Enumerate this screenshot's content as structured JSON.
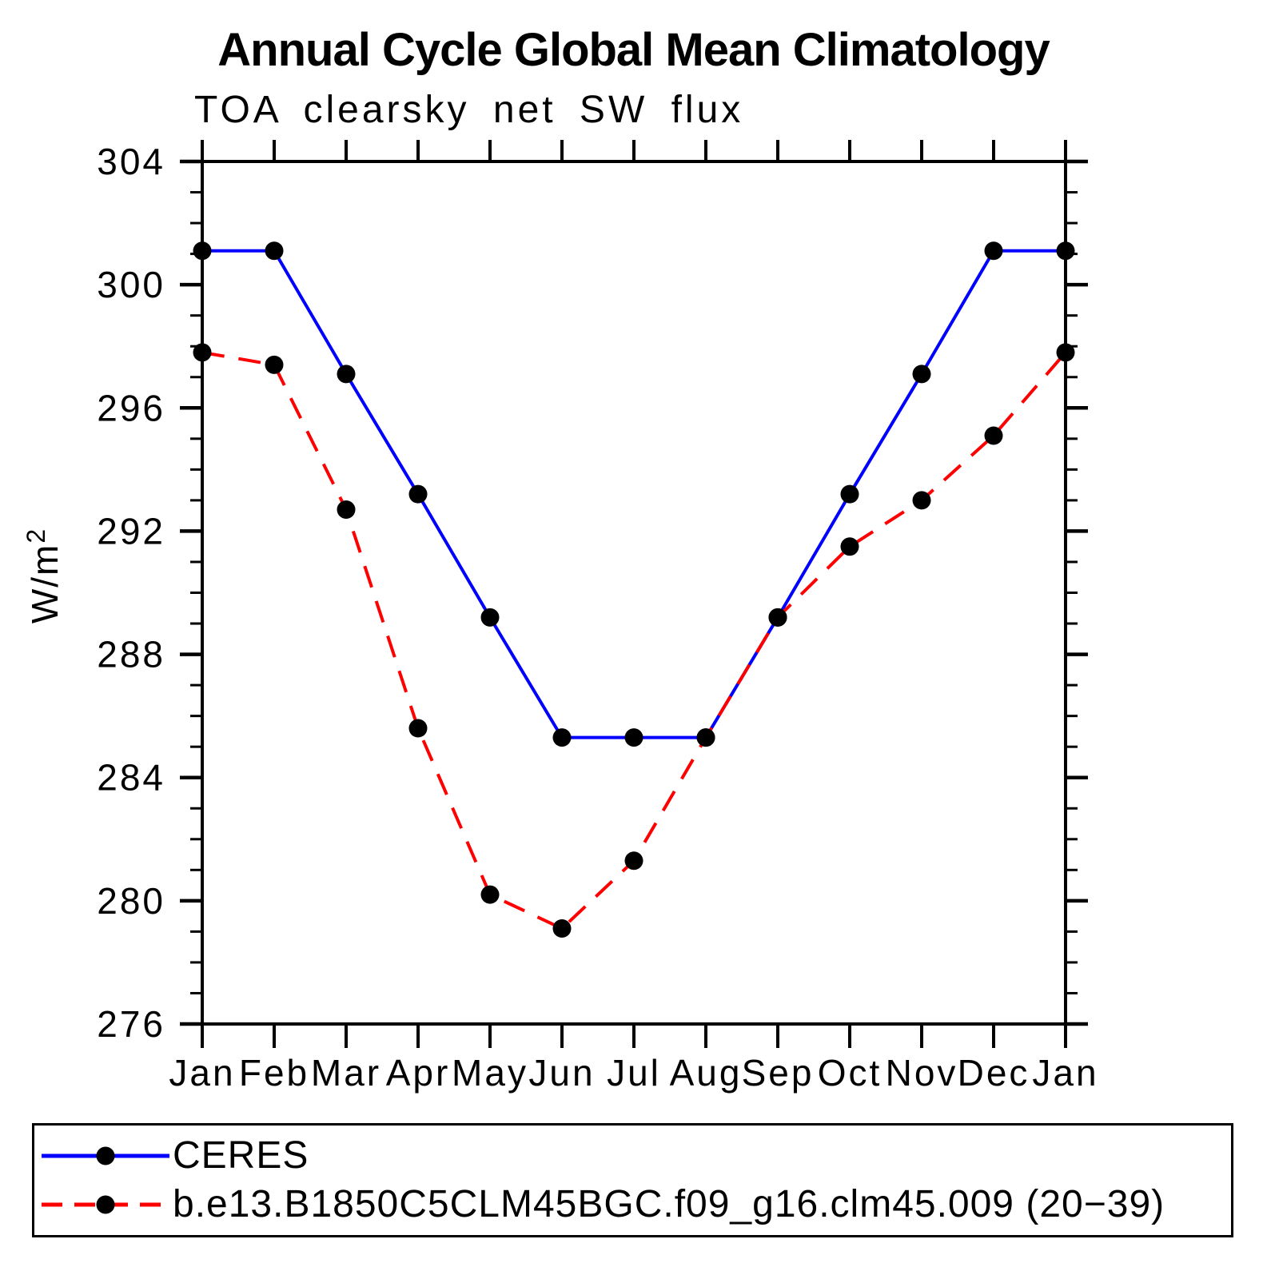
{
  "title": "Annual Cycle Global Mean Climatology",
  "subtitle": "TOA clearsky net SW flux",
  "axes": {
    "ylabel_base": "W/m",
    "ylabel_exp": "2"
  },
  "legend": {
    "entries": [
      {
        "label": "CERES",
        "color": "#0000ff",
        "style": "solid"
      },
      {
        "label": "b.e13.B1850C5CLM45BGC.f09_g16.clm45.009 (20−39)",
        "color": "#ff0000",
        "style": "dashed"
      }
    ]
  },
  "chart_data": {
    "type": "line",
    "title": "Annual Cycle Global Mean Climatology",
    "subtitle": "TOA clearsky net SW flux",
    "xlabel": "",
    "ylabel": "W/m²",
    "x_tick_labels": [
      "Jan",
      "Feb",
      "Mar",
      "Apr",
      "May",
      "Jun",
      "Jul",
      "Aug",
      "Sep",
      "Oct",
      "Nov",
      "Dec",
      "Jan"
    ],
    "ylim": [
      276,
      304
    ],
    "y_major_ticks": [
      304,
      300,
      296,
      292,
      288,
      284,
      280,
      276
    ],
    "y_minor_tick_interval": 1,
    "grid": false,
    "legend_position": "bottom",
    "marker": "filled-circle",
    "marker_color": "#000000",
    "series": [
      {
        "name": "CERES",
        "color": "#0000ff",
        "line_style": "solid",
        "values": [
          301.1,
          301.1,
          297.1,
          293.2,
          289.2,
          285.3,
          285.3,
          285.3,
          289.2,
          293.2,
          297.1,
          301.1,
          301.1
        ]
      },
      {
        "name": "b.e13.B1850C5CLM45BGC.f09_g16.clm45.009 (20−39)",
        "color": "#ff0000",
        "line_style": "dashed",
        "values": [
          297.8,
          297.4,
          292.7,
          285.6,
          280.2,
          279.1,
          281.3,
          285.3,
          289.2,
          291.5,
          293.0,
          295.1,
          297.8
        ]
      }
    ]
  }
}
